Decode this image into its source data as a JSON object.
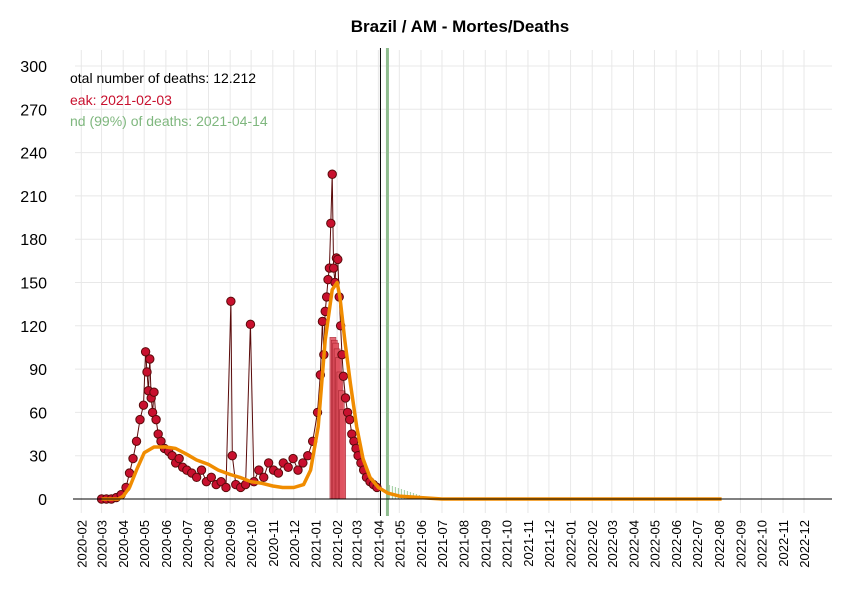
{
  "chart_data": {
    "type": "line",
    "title": "Brazil / AM - Mortes/Deaths",
    "xlabel": "",
    "ylabel": "",
    "ylim": [
      0,
      300
    ],
    "yticks": [
      "0",
      "30",
      "60",
      "90",
      "120",
      "150",
      "180",
      "210",
      "240",
      "270",
      "300"
    ],
    "xlim": [
      "2020-01-23",
      "2023-01-10"
    ],
    "xticks": [
      "2020-02",
      "2020-03",
      "2020-04",
      "2020-05",
      "2020-06",
      "2020-07",
      "2020-08",
      "2020-09",
      "2020-10",
      "2020-11",
      "2020-12",
      "2021-01",
      "2021-02",
      "2021-03",
      "2021-04",
      "2021-05",
      "2021-06",
      "2021-07",
      "2021-08",
      "2021-09",
      "2021-10",
      "2021-11",
      "2021-12",
      "2022-01",
      "2022-02",
      "2022-03",
      "2022-04",
      "2022-05",
      "2022-06",
      "2022-07",
      "2022-08",
      "2022-09",
      "2022-10",
      "2022-11",
      "2022-12"
    ],
    "grid": true,
    "annotations": {
      "total": "otal number of deaths: 12.212",
      "peak": "eak: 2021-02-03",
      "end": "nd (99%) of deaths: 2021-04-14"
    },
    "vlines": [
      {
        "name": "today",
        "x": "2021-04-04",
        "color": "#000000"
      },
      {
        "name": "end",
        "x": "2021-04-14",
        "color": "#8fbc8f"
      }
    ],
    "observed_deaths": [
      {
        "x": "2020-03-01",
        "y": 0
      },
      {
        "x": "2020-03-08",
        "y": 0
      },
      {
        "x": "2020-03-15",
        "y": 0
      },
      {
        "x": "2020-03-22",
        "y": 1
      },
      {
        "x": "2020-03-29",
        "y": 3
      },
      {
        "x": "2020-04-05",
        "y": 8
      },
      {
        "x": "2020-04-10",
        "y": 18
      },
      {
        "x": "2020-04-15",
        "y": 28
      },
      {
        "x": "2020-04-20",
        "y": 40
      },
      {
        "x": "2020-04-25",
        "y": 55
      },
      {
        "x": "2020-04-30",
        "y": 65
      },
      {
        "x": "2020-05-03",
        "y": 102
      },
      {
        "x": "2020-05-05",
        "y": 88
      },
      {
        "x": "2020-05-07",
        "y": 75
      },
      {
        "x": "2020-05-09",
        "y": 97
      },
      {
        "x": "2020-05-11",
        "y": 70
      },
      {
        "x": "2020-05-13",
        "y": 60
      },
      {
        "x": "2020-05-15",
        "y": 74
      },
      {
        "x": "2020-05-18",
        "y": 55
      },
      {
        "x": "2020-05-21",
        "y": 45
      },
      {
        "x": "2020-05-25",
        "y": 40
      },
      {
        "x": "2020-05-30",
        "y": 35
      },
      {
        "x": "2020-06-05",
        "y": 33
      },
      {
        "x": "2020-06-10",
        "y": 30
      },
      {
        "x": "2020-06-15",
        "y": 25
      },
      {
        "x": "2020-06-20",
        "y": 28
      },
      {
        "x": "2020-06-25",
        "y": 22
      },
      {
        "x": "2020-07-01",
        "y": 20
      },
      {
        "x": "2020-07-08",
        "y": 18
      },
      {
        "x": "2020-07-15",
        "y": 15
      },
      {
        "x": "2020-07-22",
        "y": 20
      },
      {
        "x": "2020-07-29",
        "y": 12
      },
      {
        "x": "2020-08-05",
        "y": 15
      },
      {
        "x": "2020-08-12",
        "y": 10
      },
      {
        "x": "2020-08-19",
        "y": 12
      },
      {
        "x": "2020-08-26",
        "y": 8
      },
      {
        "x": "2020-09-02",
        "y": 137
      },
      {
        "x": "2020-09-04",
        "y": 30
      },
      {
        "x": "2020-09-09",
        "y": 10
      },
      {
        "x": "2020-09-16",
        "y": 8
      },
      {
        "x": "2020-09-23",
        "y": 10
      },
      {
        "x": "2020-09-30",
        "y": 121
      },
      {
        "x": "2020-10-05",
        "y": 12
      },
      {
        "x": "2020-10-12",
        "y": 20
      },
      {
        "x": "2020-10-19",
        "y": 15
      },
      {
        "x": "2020-10-26",
        "y": 25
      },
      {
        "x": "2020-11-02",
        "y": 20
      },
      {
        "x": "2020-11-09",
        "y": 18
      },
      {
        "x": "2020-11-16",
        "y": 25
      },
      {
        "x": "2020-11-23",
        "y": 22
      },
      {
        "x": "2020-11-30",
        "y": 28
      },
      {
        "x": "2020-12-07",
        "y": 20
      },
      {
        "x": "2020-12-14",
        "y": 25
      },
      {
        "x": "2020-12-21",
        "y": 30
      },
      {
        "x": "2020-12-28",
        "y": 40
      },
      {
        "x": "2021-01-04",
        "y": 60
      },
      {
        "x": "2021-01-08",
        "y": 86
      },
      {
        "x": "2021-01-11",
        "y": 123
      },
      {
        "x": "2021-01-13",
        "y": 100
      },
      {
        "x": "2021-01-15",
        "y": 130
      },
      {
        "x": "2021-01-17",
        "y": 140
      },
      {
        "x": "2021-01-19",
        "y": 152
      },
      {
        "x": "2021-01-21",
        "y": 160
      },
      {
        "x": "2021-01-23",
        "y": 191
      },
      {
        "x": "2021-01-25",
        "y": 225
      },
      {
        "x": "2021-01-27",
        "y": 160
      },
      {
        "x": "2021-01-29",
        "y": 150
      },
      {
        "x": "2021-01-31",
        "y": 167
      },
      {
        "x": "2021-02-02",
        "y": 166
      },
      {
        "x": "2021-02-04",
        "y": 140
      },
      {
        "x": "2021-02-06",
        "y": 120
      },
      {
        "x": "2021-02-08",
        "y": 100
      },
      {
        "x": "2021-02-10",
        "y": 85
      },
      {
        "x": "2021-02-13",
        "y": 70
      },
      {
        "x": "2021-02-16",
        "y": 60
      },
      {
        "x": "2021-02-19",
        "y": 55
      },
      {
        "x": "2021-02-22",
        "y": 45
      },
      {
        "x": "2021-02-25",
        "y": 40
      },
      {
        "x": "2021-02-28",
        "y": 35
      },
      {
        "x": "2021-03-03",
        "y": 30
      },
      {
        "x": "2021-03-07",
        "y": 25
      },
      {
        "x": "2021-03-11",
        "y": 20
      },
      {
        "x": "2021-03-15",
        "y": 15
      },
      {
        "x": "2021-03-20",
        "y": 12
      },
      {
        "x": "2021-03-25",
        "y": 10
      },
      {
        "x": "2021-03-30",
        "y": 8
      }
    ],
    "fitted_curve": [
      {
        "x": "2020-03-01",
        "y": 0
      },
      {
        "x": "2020-03-25",
        "y": 0
      },
      {
        "x": "2020-04-01",
        "y": 2
      },
      {
        "x": "2020-04-10",
        "y": 8
      },
      {
        "x": "2020-04-20",
        "y": 20
      },
      {
        "x": "2020-05-01",
        "y": 32
      },
      {
        "x": "2020-05-15",
        "y": 36
      },
      {
        "x": "2020-06-01",
        "y": 36
      },
      {
        "x": "2020-06-15",
        "y": 35
      },
      {
        "x": "2020-07-01",
        "y": 31
      },
      {
        "x": "2020-07-15",
        "y": 27
      },
      {
        "x": "2020-08-01",
        "y": 24
      },
      {
        "x": "2020-08-15",
        "y": 20
      },
      {
        "x": "2020-09-01",
        "y": 17
      },
      {
        "x": "2020-09-15",
        "y": 15
      },
      {
        "x": "2020-10-01",
        "y": 12
      },
      {
        "x": "2020-10-15",
        "y": 11
      },
      {
        "x": "2020-11-01",
        "y": 9
      },
      {
        "x": "2020-11-15",
        "y": 8
      },
      {
        "x": "2020-12-01",
        "y": 8
      },
      {
        "x": "2020-12-15",
        "y": 10
      },
      {
        "x": "2020-12-25",
        "y": 20
      },
      {
        "x": "2021-01-05",
        "y": 50
      },
      {
        "x": "2021-01-15",
        "y": 110
      },
      {
        "x": "2021-01-25",
        "y": 145
      },
      {
        "x": "2021-02-01",
        "y": 150
      },
      {
        "x": "2021-02-05",
        "y": 140
      },
      {
        "x": "2021-02-12",
        "y": 110
      },
      {
        "x": "2021-02-20",
        "y": 80
      },
      {
        "x": "2021-03-01",
        "y": 50
      },
      {
        "x": "2021-03-10",
        "y": 28
      },
      {
        "x": "2021-03-20",
        "y": 15
      },
      {
        "x": "2021-04-01",
        "y": 8
      },
      {
        "x": "2021-04-15",
        "y": 4
      },
      {
        "x": "2021-05-01",
        "y": 2
      },
      {
        "x": "2021-06-01",
        "y": 1
      },
      {
        "x": "2021-07-01",
        "y": 0
      },
      {
        "x": "2022-08-05",
        "y": 0
      }
    ],
    "cumulative_bars": [
      {
        "x": "2021-01-26",
        "y": 112
      },
      {
        "x": "2021-01-28",
        "y": 110
      },
      {
        "x": "2021-01-30",
        "y": 108
      },
      {
        "x": "2021-02-01",
        "y": 104
      },
      {
        "x": "2021-02-03",
        "y": 98
      },
      {
        "x": "2021-02-05",
        "y": 88
      },
      {
        "x": "2021-02-07",
        "y": 75
      },
      {
        "x": "2021-02-09",
        "y": 62
      }
    ],
    "colors": {
      "observed": "#c8102e",
      "observed_stroke": "#5a0a0a",
      "fitted": "#f08c00",
      "peak_bar": "#e05260",
      "annotation_total": "#000000",
      "annotation_peak": "#c8102e",
      "annotation_end": "#7fb77e",
      "grid": "#e8e8e8"
    }
  }
}
